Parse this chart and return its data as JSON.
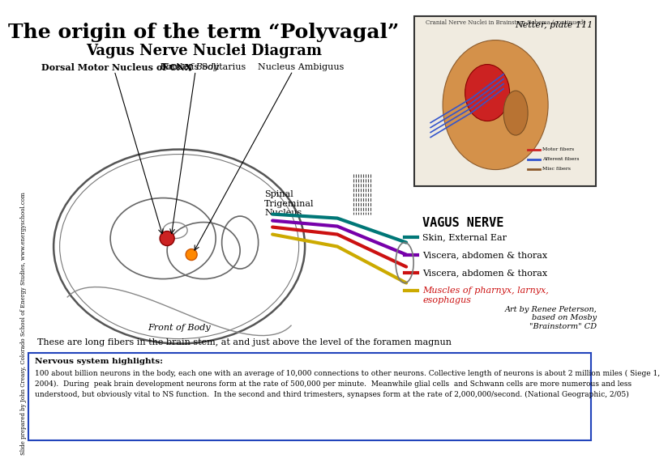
{
  "title": "The origin of the term “Polyvagal”",
  "subtitle": "Vagus Nerve Nuclei Diagram",
  "bg_color": "#ffffff",
  "label_nucleus_solitarius": "Nucleus Solitarius",
  "label_dorsal_motor": "Dorsal Motor Nucleus of CNX",
  "label_back_of_body": "Back of Body",
  "label_nucleus_ambiguus": "Nucleus Ambiguus",
  "label_spinal_trigeminal": "Spinal\nTrigeminal\nNucleus",
  "label_vagus_nerve": "VAGUS NERVE",
  "label_skin": "Skin, External Ear",
  "label_viscera1": "Viscera, abdomen & thorax",
  "label_viscera2": "Viscera, abdomen & thorax",
  "label_muscles": "Muscles of pharnyx, larnyx,\nesophagus",
  "label_front": "Front of Body",
  "label_long_fibers": "These are long fibers in the brain stem, at and just above the level of the foramen magnun",
  "label_art": "Art by Renee Peterson,\nbased on Mosby\n\"Brainstorm\" CD",
  "label_netter": "Netter, plate 111",
  "color_skin": "#007777",
  "color_viscera1": "#7700aa",
  "color_viscera2": "#cc1111",
  "color_muscles": "#ccaa00",
  "nervous_highlight_title": "Nervous system highlights",
  "nervous_lines": [
    "100 about billion neurons in the body, each one with an average of 10,000 connections to other neurons. Collective length of neurons is about 2 million miles ( Siege 1,",
    "2004).  During  peak brain development neurons form at the rate of 500,000 per minute.  Meanwhile glial cells  and Schwann cells are more numerous and less",
    "understood, but obviously vital to NS function.  In the second and third trimesters, synapses form at the rate of 2,000,000/second. (National Geographic, 2/05)"
  ],
  "slide_credit": "Slide prepared by John Creasy, Colorado School of Energy Studies, www.energyschool.com",
  "netter_caption": "Cranial Nerve Nuclei in Brainstem Schema (continued)"
}
